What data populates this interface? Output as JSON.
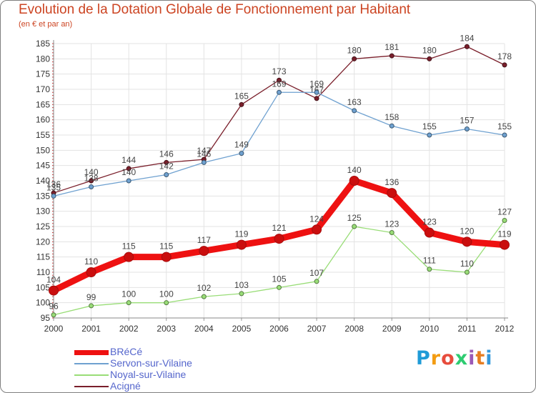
{
  "title": "Evolution de la Dotation Globale de Fonctionnement par Habitant",
  "subtitle": "(en € et par an)",
  "logo": {
    "text": "Proxiti",
    "colors": [
      "#1f9bd7",
      "#f39c12",
      "#e74c3c",
      "#2ecc71",
      "#9b59b6",
      "#e67e22",
      "#3498db"
    ]
  },
  "chart_data": {
    "type": "line",
    "categories": [
      "2000",
      "2001",
      "2002",
      "2003",
      "2004",
      "2005",
      "2006",
      "2007",
      "2008",
      "2009",
      "2010",
      "2011",
      "2012"
    ],
    "ylim": [
      95,
      185
    ],
    "ytick_step": 5,
    "grid": true,
    "legend_position": "bottom-left",
    "series": [
      {
        "name": "Acigné",
        "color": "#7a1f2b",
        "thick": false,
        "values": [
          136,
          140,
          144,
          146,
          147,
          165,
          173,
          167,
          180,
          181,
          180,
          184,
          178
        ]
      },
      {
        "name": "Servon-sur-Vilaine",
        "color": "#6fa1d0",
        "thick": false,
        "values": [
          135,
          138,
          140,
          142,
          146,
          149,
          169,
          169,
          163,
          158,
          155,
          157,
          155
        ]
      },
      {
        "name": "Noyal-sur-Vilaine",
        "color": "#99dd77",
        "thick": false,
        "values": [
          96,
          99,
          100,
          100,
          102,
          103,
          105,
          107,
          125,
          123,
          111,
          110,
          127
        ]
      },
      {
        "name": "BRéCé",
        "color": "#ee1111",
        "thick": true,
        "values": [
          104,
          110,
          115,
          115,
          117,
          119,
          121,
          124,
          140,
          136,
          123,
          120,
          119
        ]
      }
    ],
    "legend_order": [
      "BRéCé",
      "Servon-sur-Vilaine",
      "Noyal-sur-Vilaine",
      "Acigné"
    ]
  }
}
